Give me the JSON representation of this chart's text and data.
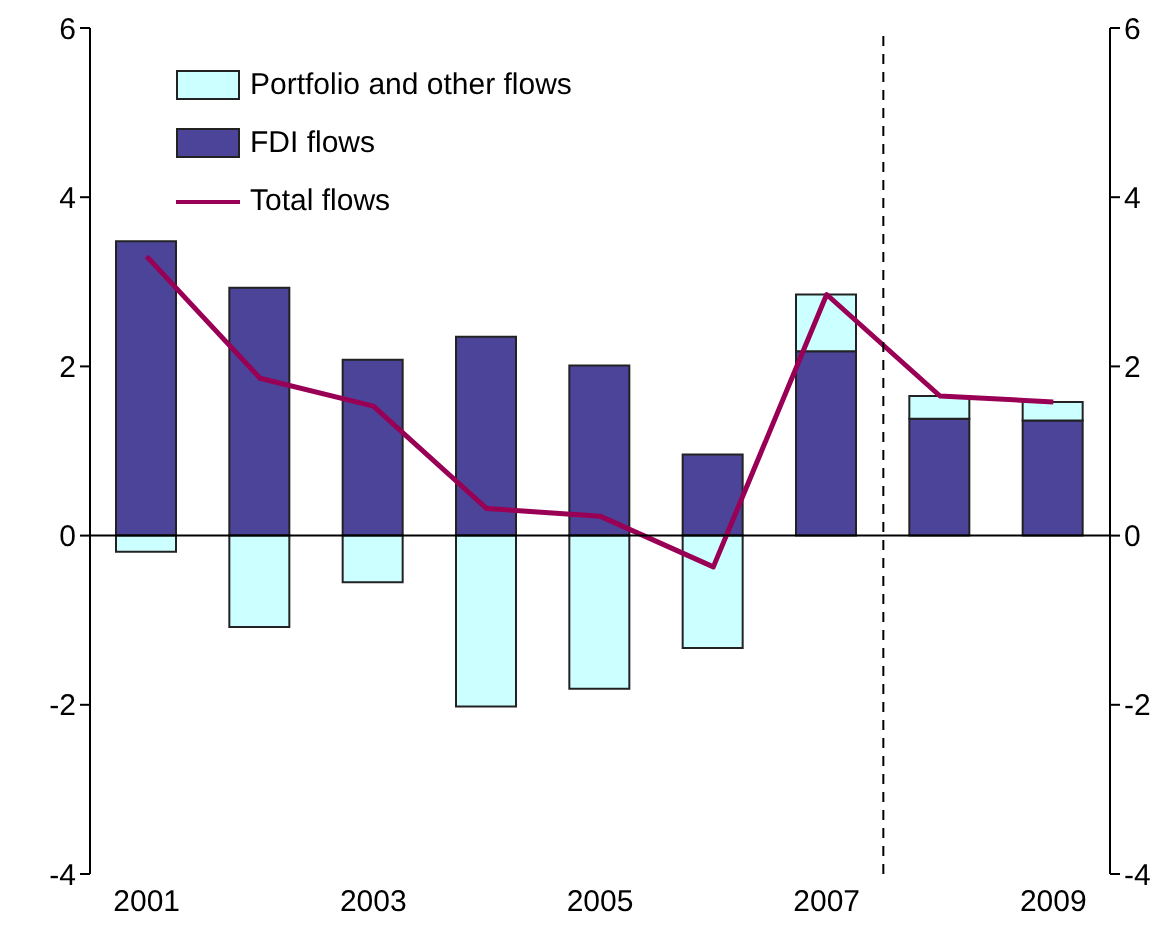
{
  "chart_data": {
    "type": "bar",
    "stacked": true,
    "x": [
      2001,
      2002,
      2003,
      2004,
      2005,
      2006,
      2007,
      2008,
      2009
    ],
    "xlim": [
      2000.5,
      2009.5
    ],
    "xticks": [
      2001,
      2003,
      2005,
      2007,
      2009
    ],
    "series": [
      {
        "name": "FDI flows",
        "color": "#4b4499",
        "values": [
          3.48,
          2.93,
          2.08,
          2.35,
          2.01,
          0.96,
          2.18,
          1.38,
          1.36
        ]
      },
      {
        "name": "Portfolio and other flows",
        "color": "#ccffff",
        "values": [
          -0.19,
          -1.08,
          -0.55,
          -2.02,
          -1.81,
          -1.33,
          0.67,
          0.27,
          0.22
        ]
      },
      {
        "name": "Total flows",
        "type": "line",
        "color": "#990055",
        "values": [
          3.3,
          1.86,
          1.53,
          0.32,
          0.23,
          -0.37,
          2.85,
          1.65,
          1.58
        ]
      }
    ],
    "ylim": [
      -4,
      6
    ],
    "yticks": [
      -4,
      -2,
      0,
      2,
      4,
      6
    ],
    "y2lim": [
      -4,
      6
    ],
    "y2ticks": [
      -4,
      -2,
      0,
      2,
      4,
      6
    ],
    "ref_lines": [
      {
        "axis": "x",
        "value": 2007.5,
        "line_style": "dashed",
        "color": "#000000"
      },
      {
        "axis": "y",
        "value": 0,
        "line_style": "solid",
        "color": "#000000"
      }
    ],
    "grid": false,
    "legend": "top left",
    "marker": "none",
    "line_style": "solid"
  }
}
